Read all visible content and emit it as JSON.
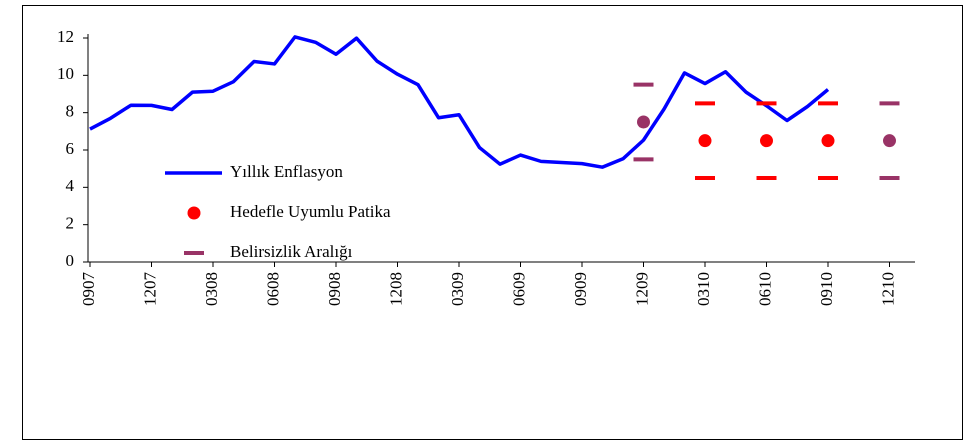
{
  "chart_data": {
    "type": "line",
    "categories": [
      "0907",
      null,
      null,
      "1207",
      null,
      null,
      "0308",
      null,
      null,
      "0608",
      null,
      null,
      "0908",
      null,
      null,
      "1208",
      null,
      null,
      "0309",
      null,
      null,
      "0609",
      null,
      null,
      "0909",
      null,
      null,
      "1209",
      null,
      null,
      "0310",
      null,
      null,
      "0610",
      null,
      null,
      "0910",
      null,
      null,
      "1210"
    ],
    "series": [
      {
        "name": "Yıllık Enflasyon",
        "color": "#0000ff",
        "kind": "line",
        "values": [
          7.12,
          7.7,
          8.4,
          8.39,
          8.17,
          9.1,
          9.15,
          9.66,
          10.74,
          10.61,
          12.06,
          11.77,
          11.13,
          11.99,
          10.76,
          10.06,
          9.5,
          7.73,
          7.89,
          6.13,
          5.24,
          5.73,
          5.39,
          5.33,
          5.27,
          5.08,
          5.53,
          6.53,
          8.19,
          10.13,
          9.56,
          10.19,
          9.1,
          8.37,
          7.58,
          8.33,
          9.24,
          null,
          null,
          null
        ]
      },
      {
        "name": "Hedefle Uyumlu Patika",
        "color": "#ff0000",
        "kind": "dot",
        "values": [
          null,
          null,
          null,
          null,
          null,
          null,
          null,
          null,
          null,
          null,
          null,
          null,
          null,
          null,
          null,
          null,
          null,
          null,
          null,
          null,
          null,
          null,
          null,
          null,
          null,
          null,
          null,
          7.5,
          null,
          null,
          6.5,
          null,
          null,
          6.5,
          null,
          null,
          6.5,
          null,
          null,
          6.5
        ],
        "point_colors": {
          "27": "#993366",
          "39": "#993366"
        }
      },
      {
        "name": "Belirsizlik Aralığı",
        "color": "#993366",
        "kind": "range",
        "lower": [
          null,
          null,
          null,
          null,
          null,
          null,
          null,
          null,
          null,
          null,
          null,
          null,
          null,
          null,
          null,
          null,
          null,
          null,
          null,
          null,
          null,
          null,
          null,
          null,
          null,
          null,
          null,
          5.5,
          null,
          null,
          4.5,
          null,
          null,
          4.5,
          null,
          null,
          4.5,
          null,
          null,
          4.5
        ],
        "upper": [
          null,
          null,
          null,
          null,
          null,
          null,
          null,
          null,
          null,
          null,
          null,
          null,
          null,
          null,
          null,
          null,
          null,
          null,
          null,
          null,
          null,
          null,
          null,
          null,
          null,
          null,
          null,
          9.5,
          null,
          null,
          8.5,
          null,
          null,
          8.5,
          null,
          null,
          8.5,
          null,
          null,
          8.5
        ],
        "point_colors": {
          "30": "#ff0000",
          "33": "#ff0000",
          "36": "#ff0000"
        }
      }
    ],
    "ylim": [
      0,
      12
    ],
    "yticks": [
      0,
      2,
      4,
      6,
      8,
      10,
      12
    ],
    "grid": false
  }
}
